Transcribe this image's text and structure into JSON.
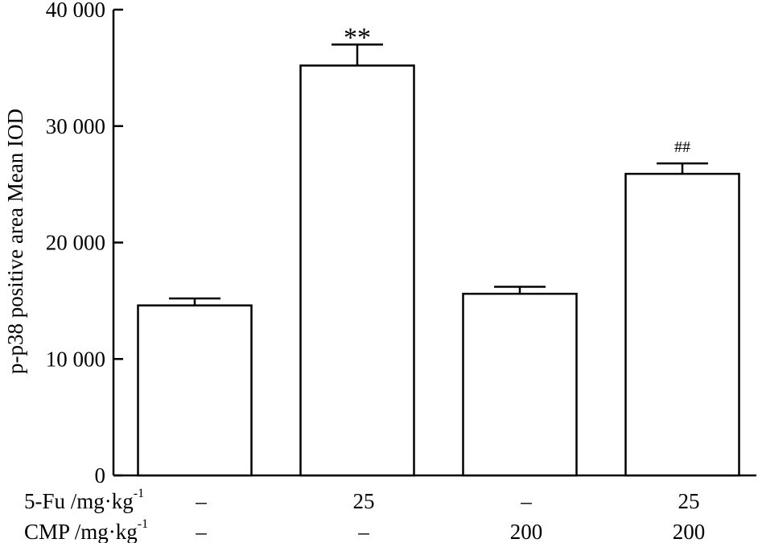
{
  "chart_data": {
    "type": "bar",
    "title": "",
    "ylabel": "p-p38 positive area Mean IOD",
    "xlabel": "",
    "ylim": [
      0,
      40000
    ],
    "yticks": [
      0,
      10000,
      20000,
      30000,
      40000
    ],
    "ytick_labels": [
      "0",
      "10 000",
      "20 000",
      "30 000",
      "40 000"
    ],
    "grid": false,
    "legend": "none",
    "groups": [
      {
        "fu": "–",
        "cmp": "–",
        "value": 14600,
        "error": 600,
        "annotation": ""
      },
      {
        "fu": "25",
        "cmp": "–",
        "value": 35200,
        "error": 1800,
        "annotation": "**"
      },
      {
        "fu": "–",
        "cmp": "200",
        "value": 15600,
        "error": 600,
        "annotation": ""
      },
      {
        "fu": "25",
        "cmp": "200",
        "value": 25900,
        "error": 900,
        "annotation": "##"
      }
    ],
    "factor_labels": {
      "fu": "5-Fu /mg·kg",
      "cmp": "CMP /mg·kg",
      "unit_exponent": "-1"
    },
    "colors": {
      "bar_fill": "#ffffff",
      "stroke": "#000000"
    }
  }
}
